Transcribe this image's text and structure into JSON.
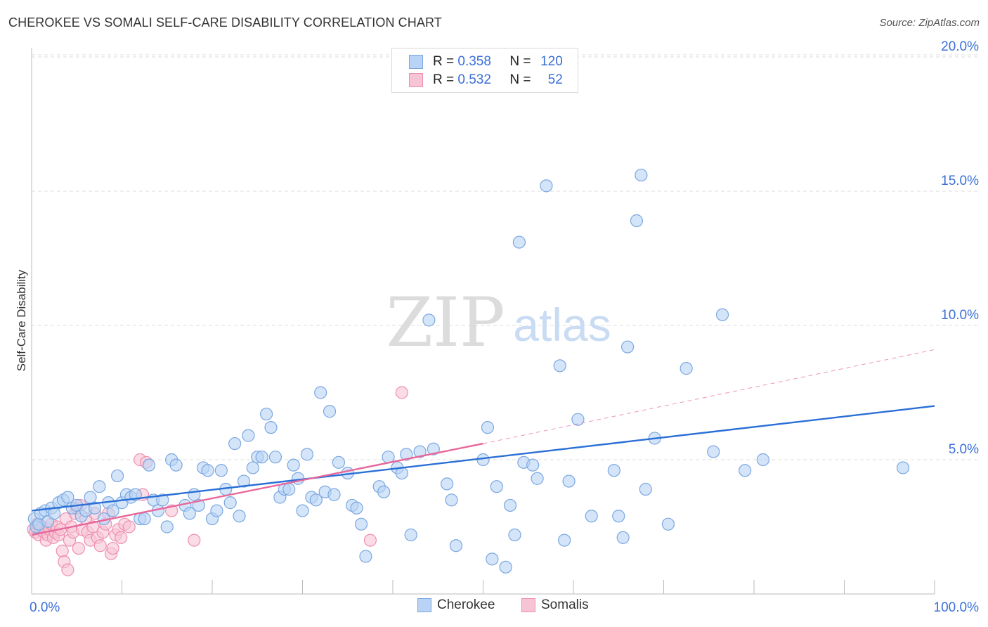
{
  "title": "CHEROKEE VS SOMALI SELF-CARE DISABILITY CORRELATION CHART",
  "source": "Source: ZipAtlas.com",
  "watermark": {
    "zip": "ZIP",
    "atlas": "atlas"
  },
  "colors": {
    "cherokee_fill": "#b8d3f5",
    "cherokee_stroke": "#7ba7e0",
    "cherokee_line": "#2a6fd6",
    "somali_fill": "#f7c4d5",
    "somali_stroke": "#ef8fb0",
    "somali_line": "#e8679a",
    "tick_label": "#3a6fd8",
    "grid": "#dddddd"
  },
  "stats": [
    {
      "r_label": "R =",
      "r_value": "0.358",
      "n_label": "N =",
      "n_value": "120"
    },
    {
      "r_label": "R =",
      "r_value": "0.532",
      "n_label": "N =",
      "n_value": "52"
    }
  ],
  "chart_data": {
    "type": "scatter",
    "title": "CHEROKEE VS SOMALI SELF-CARE DISABILITY CORRELATION CHART",
    "xlabel": "",
    "ylabel": "Self-Care Disability",
    "xlim": [
      0,
      100
    ],
    "ylim": [
      0,
      20.5
    ],
    "x_tick_labels": [
      "0.0%",
      "100.0%"
    ],
    "y_ticks": [
      5,
      10,
      15,
      20
    ],
    "y_tick_labels": [
      "5.0%",
      "10.0%",
      "15.0%",
      "20.0%"
    ],
    "grid": true,
    "legend_position": "bottom",
    "series": [
      {
        "name": "Cherokee",
        "trend": {
          "x": [
            0,
            100
          ],
          "y": [
            3.1,
            7.0
          ],
          "style": "solid"
        },
        "points": [
          [
            0.3,
            2.8
          ],
          [
            0.5,
            2.5
          ],
          [
            0.8,
            2.6
          ],
          [
            1.0,
            3.0
          ],
          [
            1.5,
            3.1
          ],
          [
            1.8,
            2.7
          ],
          [
            2.2,
            3.2
          ],
          [
            2.5,
            3.0
          ],
          [
            3.0,
            3.4
          ],
          [
            3.5,
            3.5
          ],
          [
            4.0,
            3.6
          ],
          [
            4.5,
            3.2
          ],
          [
            5.0,
            3.3
          ],
          [
            5.5,
            2.9
          ],
          [
            6.0,
            3.1
          ],
          [
            6.5,
            3.6
          ],
          [
            7.0,
            3.2
          ],
          [
            7.5,
            4.0
          ],
          [
            8.0,
            2.8
          ],
          [
            8.5,
            3.4
          ],
          [
            9.0,
            3.1
          ],
          [
            9.5,
            4.4
          ],
          [
            10.0,
            3.4
          ],
          [
            10.5,
            3.7
          ],
          [
            11.0,
            3.6
          ],
          [
            11.5,
            3.7
          ],
          [
            12.0,
            2.8
          ],
          [
            12.5,
            2.8
          ],
          [
            13.0,
            4.8
          ],
          [
            13.5,
            3.5
          ],
          [
            14.0,
            3.1
          ],
          [
            14.5,
            3.5
          ],
          [
            15.0,
            2.5
          ],
          [
            15.5,
            5.0
          ],
          [
            16.0,
            4.8
          ],
          [
            17.0,
            3.3
          ],
          [
            17.5,
            3.0
          ],
          [
            18.0,
            3.7
          ],
          [
            18.5,
            3.3
          ],
          [
            19.0,
            4.7
          ],
          [
            19.5,
            4.6
          ],
          [
            20.0,
            2.8
          ],
          [
            20.5,
            3.1
          ],
          [
            21.0,
            4.6
          ],
          [
            21.5,
            3.9
          ],
          [
            22.0,
            3.4
          ],
          [
            22.5,
            5.6
          ],
          [
            23.0,
            2.9
          ],
          [
            23.5,
            4.2
          ],
          [
            24.0,
            5.9
          ],
          [
            24.5,
            4.7
          ],
          [
            25.0,
            5.1
          ],
          [
            25.5,
            5.1
          ],
          [
            26.0,
            6.7
          ],
          [
            26.5,
            6.2
          ],
          [
            27.0,
            5.1
          ],
          [
            27.5,
            3.6
          ],
          [
            28.0,
            3.9
          ],
          [
            28.5,
            3.9
          ],
          [
            29.0,
            4.8
          ],
          [
            29.5,
            4.3
          ],
          [
            30.0,
            3.1
          ],
          [
            30.5,
            5.2
          ],
          [
            31.0,
            3.6
          ],
          [
            31.5,
            3.5
          ],
          [
            32.0,
            7.5
          ],
          [
            32.5,
            3.8
          ],
          [
            33.0,
            6.8
          ],
          [
            33.5,
            3.7
          ],
          [
            34.0,
            4.9
          ],
          [
            35.0,
            4.5
          ],
          [
            35.5,
            3.3
          ],
          [
            36.0,
            3.2
          ],
          [
            36.5,
            2.6
          ],
          [
            37.0,
            1.4
          ],
          [
            38.5,
            4.0
          ],
          [
            39.0,
            3.8
          ],
          [
            39.5,
            5.1
          ],
          [
            40.5,
            4.7
          ],
          [
            41.0,
            4.5
          ],
          [
            41.5,
            5.2
          ],
          [
            42.0,
            2.2
          ],
          [
            43.0,
            5.3
          ],
          [
            44.0,
            10.2
          ],
          [
            44.5,
            5.4
          ],
          [
            46.0,
            4.1
          ],
          [
            46.5,
            3.5
          ],
          [
            47.0,
            1.8
          ],
          [
            50.0,
            5.0
          ],
          [
            50.5,
            6.2
          ],
          [
            51.0,
            1.3
          ],
          [
            51.5,
            4.0
          ],
          [
            52.5,
            1.0
          ],
          [
            53.0,
            3.3
          ],
          [
            53.5,
            2.2
          ],
          [
            54.0,
            13.1
          ],
          [
            54.5,
            4.9
          ],
          [
            55.5,
            4.8
          ],
          [
            56.0,
            4.3
          ],
          [
            57.0,
            15.2
          ],
          [
            58.5,
            8.5
          ],
          [
            59.0,
            2.0
          ],
          [
            59.5,
            4.2
          ],
          [
            60.5,
            6.5
          ],
          [
            62.0,
            2.9
          ],
          [
            64.5,
            4.6
          ],
          [
            65.0,
            2.9
          ],
          [
            65.5,
            2.1
          ],
          [
            66.0,
            9.2
          ],
          [
            67.0,
            13.9
          ],
          [
            67.5,
            15.6
          ],
          [
            68.0,
            3.9
          ],
          [
            69.0,
            5.8
          ],
          [
            70.5,
            2.6
          ],
          [
            72.5,
            8.4
          ],
          [
            75.5,
            5.3
          ],
          [
            76.5,
            10.4
          ],
          [
            79.0,
            4.6
          ],
          [
            81.0,
            5.0
          ],
          [
            96.5,
            4.7
          ]
        ]
      },
      {
        "name": "Somalis",
        "trend": {
          "x": [
            0,
            50
          ],
          "y": [
            2.2,
            5.6
          ],
          "style": "solid",
          "extension": {
            "x": [
              50,
              100
            ],
            "y": [
              5.6,
              9.1
            ],
            "style": "dashed"
          }
        },
        "points": [
          [
            0.2,
            2.4
          ],
          [
            0.4,
            2.3
          ],
          [
            0.6,
            2.6
          ],
          [
            0.8,
            2.2
          ],
          [
            1.0,
            2.4
          ],
          [
            1.2,
            2.5
          ],
          [
            1.4,
            2.3
          ],
          [
            1.6,
            2.0
          ],
          [
            1.8,
            2.2
          ],
          [
            2.0,
            2.4
          ],
          [
            2.2,
            2.6
          ],
          [
            2.4,
            2.1
          ],
          [
            2.6,
            2.3
          ],
          [
            2.8,
            2.5
          ],
          [
            3.0,
            2.2
          ],
          [
            3.2,
            2.4
          ],
          [
            3.4,
            1.6
          ],
          [
            3.6,
            1.2
          ],
          [
            3.8,
            2.8
          ],
          [
            4.0,
            0.9
          ],
          [
            4.2,
            2.0
          ],
          [
            4.4,
            2.5
          ],
          [
            4.6,
            2.3
          ],
          [
            4.8,
            3.0
          ],
          [
            5.0,
            3.2
          ],
          [
            5.2,
            1.7
          ],
          [
            5.4,
            3.3
          ],
          [
            5.6,
            2.4
          ],
          [
            6.0,
            2.8
          ],
          [
            6.2,
            2.3
          ],
          [
            6.5,
            2.0
          ],
          [
            6.8,
            2.5
          ],
          [
            7.0,
            3.0
          ],
          [
            7.3,
            2.1
          ],
          [
            7.6,
            1.8
          ],
          [
            7.9,
            2.3
          ],
          [
            8.2,
            2.6
          ],
          [
            8.5,
            3.0
          ],
          [
            8.8,
            1.5
          ],
          [
            9.0,
            1.7
          ],
          [
            9.3,
            2.2
          ],
          [
            9.6,
            2.4
          ],
          [
            9.9,
            2.1
          ],
          [
            10.3,
            2.6
          ],
          [
            10.8,
            2.5
          ],
          [
            12.0,
            5.0
          ],
          [
            12.3,
            3.7
          ],
          [
            12.7,
            4.9
          ],
          [
            15.5,
            3.1
          ],
          [
            18.0,
            2.0
          ],
          [
            37.5,
            2.0
          ],
          [
            41.0,
            7.5
          ]
        ]
      }
    ]
  }
}
